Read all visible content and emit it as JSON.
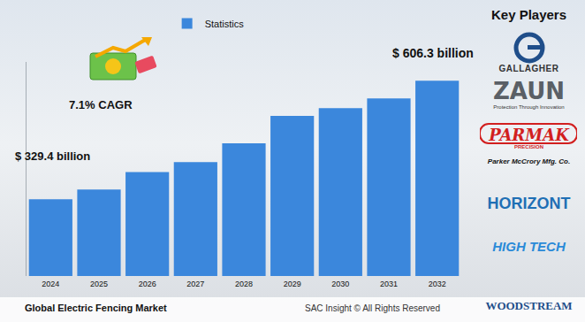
{
  "chart_data": {
    "type": "bar",
    "title": "Global Electric Fencing Market",
    "source": "SAC Insight © All Rights Reserved",
    "categories": [
      "2024",
      "2025",
      "2026",
      "2027",
      "2028",
      "2029",
      "2030",
      "2031",
      "2032"
    ],
    "series": [
      {
        "name": "Statistics",
        "color": "#3b87dc",
        "values": [
          329.4,
          352,
          393,
          416,
          460,
          524,
          542,
          565,
          606.3
        ]
      }
    ],
    "ylim": [
      150,
      650
    ],
    "tick_labels": "x",
    "grid": false,
    "legend": "top",
    "annotations": [
      {
        "category": "2024",
        "text": "$ 329.4 billion"
      },
      {
        "category": "2032",
        "text": "$ 606.3 billion"
      },
      {
        "text": "7.1% CAGR"
      }
    ]
  },
  "key_players": {
    "heading": "Key Players",
    "logos": [
      "GALLAGHER",
      "ZAUN",
      "Protection Through Innovation",
      "PARMAK",
      "PRECISION",
      "Parker McCrory Mfg. Co.",
      "HORIZONT",
      "HIGH TECH",
      "WOODSTREAM"
    ]
  }
}
